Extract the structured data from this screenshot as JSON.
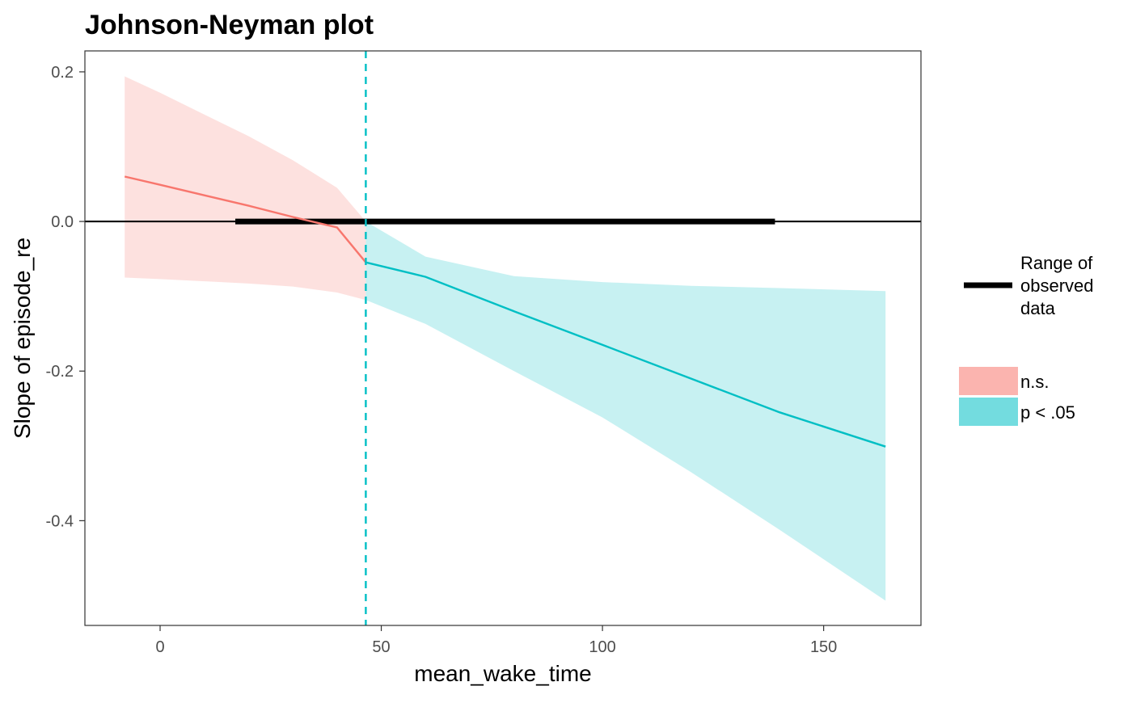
{
  "chart_data": {
    "type": "line",
    "title": "Johnson-Neyman plot",
    "xlabel": "mean_wake_time",
    "ylabel": "Slope of episode_re",
    "xlim": [
      -17,
      172
    ],
    "ylim": [
      -0.54,
      0.228
    ],
    "x_ticks": [
      0,
      50,
      100,
      150
    ],
    "x_tick_labels": [
      "0",
      "50",
      "100",
      "150"
    ],
    "y_ticks": [
      0.2,
      0.0,
      -0.2,
      -0.4
    ],
    "y_tick_labels": [
      "0.2",
      "0.0",
      "-0.2",
      "-0.4"
    ],
    "grid": false,
    "legend_position": "right",
    "jn_boundary": 46.5,
    "observed_range": [
      17,
      139
    ],
    "reference_line_y": 0,
    "series": [
      {
        "name": "n.s.",
        "color": "#F8766D",
        "fill_color": "#F8766D",
        "x": [
          -8,
          0,
          10,
          20,
          30,
          40,
          46.5
        ],
        "y": [
          0.06,
          0.049,
          0.035,
          0.021,
          0.006,
          -0.008,
          -0.0547
        ],
        "lower": [
          -0.075,
          -0.077,
          -0.08,
          -0.083,
          -0.087,
          -0.095,
          -0.105
        ],
        "upper": [
          0.194,
          0.172,
          0.143,
          0.114,
          0.082,
          0.045,
          0.0
        ]
      },
      {
        "name": "p < .05",
        "color": "#00BFC4",
        "fill_color": "#00BFC4",
        "x": [
          46.5,
          60,
          80,
          100,
          120,
          140,
          164
        ],
        "y": [
          -0.0547,
          -0.074,
          -0.12,
          -0.165,
          -0.21,
          -0.255,
          -0.301
        ],
        "lower": [
          -0.105,
          -0.137,
          -0.2,
          -0.262,
          -0.335,
          -0.412,
          -0.507
        ],
        "upper": [
          0.0,
          -0.047,
          -0.073,
          -0.081,
          -0.086,
          -0.089,
          -0.093
        ]
      }
    ],
    "legend": {
      "range_label": [
        "Range of",
        "observed",
        "data"
      ],
      "fill_entries": [
        {
          "label": "n.s.",
          "color": "#F8766D"
        },
        {
          "label": "p < .05",
          "color": "#00BFC4"
        }
      ]
    }
  }
}
